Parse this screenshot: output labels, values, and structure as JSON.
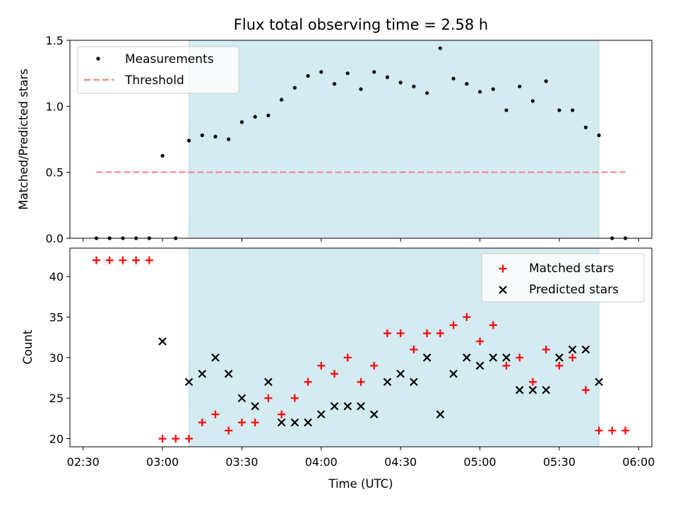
{
  "chart_data": [
    {
      "type": "scatter",
      "title": "Flux total observing time = 2.58 h",
      "ylabel": "Matched/Predicted stars",
      "ylim": [
        0,
        1.5
      ],
      "yticks": [
        "0.0",
        "0.5",
        "1.0",
        "1.5"
      ],
      "x_range": [
        "02:25",
        "06:05"
      ],
      "shaded_interval": [
        "03:10",
        "05:45"
      ],
      "shade_color": "#d4ebf1",
      "threshold": {
        "value": 0.5,
        "from": "02:35",
        "to": "05:55",
        "color": "#f47f7f"
      },
      "legend": {
        "position": "top-left",
        "entries": [
          "Measurements",
          "Threshold"
        ]
      },
      "series": [
        {
          "name": "Measurements",
          "color": "#000000",
          "marker": "dot",
          "points": [
            [
              "02:35",
              0
            ],
            [
              "02:40",
              0
            ],
            [
              "02:45",
              0
            ],
            [
              "02:50",
              0
            ],
            [
              "02:55",
              0
            ],
            [
              "03:00",
              0.625
            ],
            [
              "03:05",
              0
            ],
            [
              "03:10",
              0.74
            ],
            [
              "03:15",
              0.78
            ],
            [
              "03:20",
              0.77
            ],
            [
              "03:25",
              0.75
            ],
            [
              "03:30",
              0.88
            ],
            [
              "03:35",
              0.92
            ],
            [
              "03:40",
              0.93
            ],
            [
              "03:45",
              1.05
            ],
            [
              "03:50",
              1.14
            ],
            [
              "03:55",
              1.23
            ],
            [
              "04:00",
              1.26
            ],
            [
              "04:05",
              1.17
            ],
            [
              "04:10",
              1.25
            ],
            [
              "04:15",
              1.13
            ],
            [
              "04:20",
              1.26
            ],
            [
              "04:25",
              1.22
            ],
            [
              "04:30",
              1.18
            ],
            [
              "04:35",
              1.15
            ],
            [
              "04:40",
              1.1
            ],
            [
              "04:45",
              1.44
            ],
            [
              "04:50",
              1.21
            ],
            [
              "04:55",
              1.17
            ],
            [
              "05:00",
              1.11
            ],
            [
              "05:05",
              1.13
            ],
            [
              "05:10",
              0.97
            ],
            [
              "05:15",
              1.15
            ],
            [
              "05:20",
              1.04
            ],
            [
              "05:25",
              1.19
            ],
            [
              "05:30",
              0.97
            ],
            [
              "05:35",
              0.97
            ],
            [
              "05:40",
              0.84
            ],
            [
              "05:45",
              0.78
            ],
            [
              "05:50",
              0
            ],
            [
              "05:55",
              0
            ]
          ]
        }
      ]
    },
    {
      "type": "scatter",
      "xlabel": "Time (UTC)",
      "ylabel": "Count",
      "ylim": [
        19,
        43.5
      ],
      "yticks": [
        "20",
        "25",
        "30",
        "35",
        "40"
      ],
      "xticks": [
        "02:30",
        "03:00",
        "03:30",
        "04:00",
        "04:30",
        "05:00",
        "05:30",
        "06:00"
      ],
      "legend": {
        "position": "top-right",
        "entries": [
          "Matched stars",
          "Predicted stars"
        ]
      },
      "series": [
        {
          "name": "Matched stars",
          "color": "#ff0000",
          "marker": "plus",
          "points": [
            [
              "02:35",
              42
            ],
            [
              "02:40",
              42
            ],
            [
              "02:45",
              42
            ],
            [
              "02:50",
              42
            ],
            [
              "02:55",
              42
            ],
            [
              "03:00",
              20
            ],
            [
              "03:05",
              20
            ],
            [
              "03:10",
              20
            ],
            [
              "03:15",
              22
            ],
            [
              "03:20",
              23
            ],
            [
              "03:25",
              21
            ],
            [
              "03:30",
              22
            ],
            [
              "03:35",
              22
            ],
            [
              "03:40",
              25
            ],
            [
              "03:45",
              23
            ],
            [
              "03:50",
              25
            ],
            [
              "03:55",
              27
            ],
            [
              "04:00",
              29
            ],
            [
              "04:05",
              28
            ],
            [
              "04:10",
              30
            ],
            [
              "04:15",
              27
            ],
            [
              "04:20",
              29
            ],
            [
              "04:25",
              33
            ],
            [
              "04:30",
              33
            ],
            [
              "04:35",
              31
            ],
            [
              "04:40",
              33
            ],
            [
              "04:45",
              33
            ],
            [
              "04:50",
              34
            ],
            [
              "04:55",
              35
            ],
            [
              "05:00",
              32
            ],
            [
              "05:05",
              34
            ],
            [
              "05:10",
              29
            ],
            [
              "05:15",
              30
            ],
            [
              "05:20",
              27
            ],
            [
              "05:25",
              31
            ],
            [
              "05:30",
              29
            ],
            [
              "05:35",
              30
            ],
            [
              "05:40",
              26
            ],
            [
              "05:45",
              21
            ],
            [
              "05:50",
              21
            ],
            [
              "05:55",
              21
            ]
          ]
        },
        {
          "name": "Predicted stars",
          "color": "#000000",
          "marker": "x",
          "points": [
            [
              "03:00",
              32
            ],
            [
              "03:10",
              27
            ],
            [
              "03:15",
              28
            ],
            [
              "03:20",
              30
            ],
            [
              "03:25",
              28
            ],
            [
              "03:30",
              25
            ],
            [
              "03:35",
              24
            ],
            [
              "03:40",
              27
            ],
            [
              "03:45",
              22
            ],
            [
              "03:50",
              22
            ],
            [
              "03:55",
              22
            ],
            [
              "04:00",
              23
            ],
            [
              "04:05",
              24
            ],
            [
              "04:10",
              24
            ],
            [
              "04:15",
              24
            ],
            [
              "04:20",
              23
            ],
            [
              "04:25",
              27
            ],
            [
              "04:30",
              28
            ],
            [
              "04:35",
              27
            ],
            [
              "04:40",
              30
            ],
            [
              "04:45",
              23
            ],
            [
              "04:50",
              28
            ],
            [
              "04:55",
              30
            ],
            [
              "05:00",
              29
            ],
            [
              "05:05",
              30
            ],
            [
              "05:10",
              30
            ],
            [
              "05:15",
              26
            ],
            [
              "05:20",
              26
            ],
            [
              "05:25",
              26
            ],
            [
              "05:30",
              30
            ],
            [
              "05:35",
              31
            ],
            [
              "05:40",
              31
            ],
            [
              "05:45",
              27
            ]
          ]
        }
      ]
    }
  ]
}
